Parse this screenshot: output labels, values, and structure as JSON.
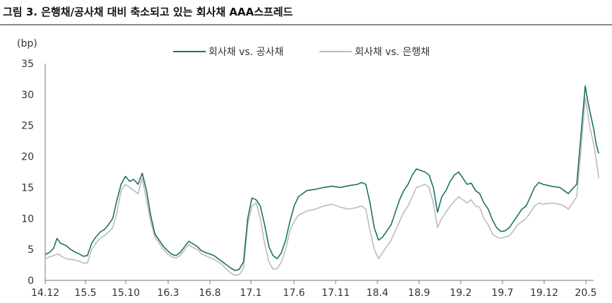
{
  "title": "그림 3. 은행채/공사채 대비 축소되고 있는 회사채 AAA스프레드",
  "chart_data": {
    "type": "line",
    "title": "그림 3. 은행채/공사채 대비 축소되고 있는 회사채 AAA스프레드",
    "ylabel": "(bp)",
    "xlabel": "",
    "ylim": [
      0,
      35
    ],
    "yticks": [
      "0",
      "5",
      "10",
      "15",
      "20",
      "25",
      "30",
      "35"
    ],
    "xticks": [
      "14.12",
      "15.5",
      "15.10",
      "16.3",
      "16.8",
      "17.1",
      "17.6",
      "17.11",
      "18.4",
      "18.9",
      "19.2",
      "19.7",
      "19.12",
      "20.5"
    ],
    "xlim": [
      0,
      65
    ],
    "legend_position": "top",
    "series": [
      {
        "name": "회사채 vs. 공사채",
        "color": "#1f6f68",
        "points": [
          [
            0,
            4.2
          ],
          [
            0.5,
            4.5
          ],
          [
            1,
            5.2
          ],
          [
            1.4,
            6.8
          ],
          [
            1.8,
            6.0
          ],
          [
            2.5,
            5.6
          ],
          [
            3,
            5.0
          ],
          [
            3.5,
            4.6
          ],
          [
            4,
            4.3
          ],
          [
            4.5,
            3.9
          ],
          [
            5,
            4.0
          ],
          [
            5.5,
            6.0
          ],
          [
            6,
            7.0
          ],
          [
            6.5,
            7.8
          ],
          [
            7,
            8.2
          ],
          [
            7.5,
            9.0
          ],
          [
            8,
            10.0
          ],
          [
            8.5,
            13.0
          ],
          [
            9,
            15.5
          ],
          [
            9.5,
            16.8
          ],
          [
            10,
            16.0
          ],
          [
            10.5,
            16.3
          ],
          [
            11,
            15.5
          ],
          [
            11.5,
            17.3
          ],
          [
            12,
            14.5
          ],
          [
            12.5,
            10.5
          ],
          [
            13,
            7.5
          ],
          [
            13.5,
            6.5
          ],
          [
            14,
            5.5
          ],
          [
            14.5,
            4.8
          ],
          [
            15,
            4.2
          ],
          [
            15.5,
            4.0
          ],
          [
            16,
            4.5
          ],
          [
            17,
            6.3
          ],
          [
            17.5,
            5.9
          ],
          [
            18,
            5.5
          ],
          [
            18.5,
            4.8
          ],
          [
            19,
            4.5
          ],
          [
            20,
            4.0
          ],
          [
            20.5,
            3.5
          ],
          [
            21,
            3.0
          ],
          [
            21.5,
            2.5
          ],
          [
            22,
            2.0
          ],
          [
            22.5,
            1.6
          ],
          [
            23,
            1.8
          ],
          [
            23.5,
            3.0
          ],
          [
            24,
            10.0
          ],
          [
            24.5,
            13.3
          ],
          [
            25,
            13.0
          ],
          [
            25.5,
            12.0
          ],
          [
            26,
            9.0
          ],
          [
            26.5,
            5.5
          ],
          [
            27,
            4.0
          ],
          [
            27.5,
            3.5
          ],
          [
            28,
            4.5
          ],
          [
            28.5,
            6.5
          ],
          [
            29,
            9.5
          ],
          [
            29.5,
            12.0
          ],
          [
            30,
            13.5
          ],
          [
            31,
            14.5
          ],
          [
            32,
            14.7
          ],
          [
            33,
            15.0
          ],
          [
            34,
            15.2
          ],
          [
            35,
            15.0
          ],
          [
            36,
            15.3
          ],
          [
            37,
            15.5
          ],
          [
            37.5,
            15.8
          ],
          [
            38,
            15.5
          ],
          [
            38.5,
            12.5
          ],
          [
            39,
            8.5
          ],
          [
            39.5,
            6.5
          ],
          [
            40,
            7.0
          ],
          [
            40.5,
            8.0
          ],
          [
            41,
            9.0
          ],
          [
            41.5,
            11.0
          ],
          [
            42,
            13.0
          ],
          [
            42.5,
            14.5
          ],
          [
            43,
            15.5
          ],
          [
            43.5,
            17.0
          ],
          [
            44,
            18.0
          ],
          [
            45,
            17.5
          ],
          [
            45.5,
            17.0
          ],
          [
            46,
            15.0
          ],
          [
            46.5,
            11.0
          ],
          [
            47,
            13.5
          ],
          [
            47.5,
            14.5
          ],
          [
            48,
            16.0
          ],
          [
            48.5,
            17.0
          ],
          [
            49,
            17.5
          ],
          [
            49.5,
            16.5
          ],
          [
            50,
            15.5
          ],
          [
            50.5,
            15.7
          ],
          [
            51,
            14.5
          ],
          [
            51.5,
            14.0
          ],
          [
            52,
            12.5
          ],
          [
            52.5,
            11.5
          ],
          [
            53,
            9.8
          ],
          [
            53.5,
            8.5
          ],
          [
            54,
            7.9
          ],
          [
            54.5,
            8.0
          ],
          [
            55,
            8.5
          ],
          [
            55.5,
            9.5
          ],
          [
            56,
            10.5
          ],
          [
            56.5,
            11.5
          ],
          [
            57,
            12.0
          ],
          [
            57.5,
            13.5
          ],
          [
            58,
            15.0
          ],
          [
            58.5,
            15.8
          ],
          [
            59,
            15.5
          ],
          [
            60,
            15.2
          ],
          [
            61,
            15.0
          ],
          [
            61.5,
            14.5
          ],
          [
            62,
            14.0
          ],
          [
            62.5,
            14.8
          ],
          [
            63,
            15.5
          ],
          [
            63.5,
            23.5
          ],
          [
            64,
            31.4
          ],
          [
            64.3,
            29.0
          ],
          [
            64.6,
            27.0
          ],
          [
            65,
            24.5
          ],
          [
            65.3,
            22.0
          ],
          [
            65.6,
            20.5
          ]
        ]
      },
      {
        "name": "회사채 vs. 은행채",
        "color": "#bcbcbc",
        "points": [
          [
            0,
            3.5
          ],
          [
            0.5,
            3.8
          ],
          [
            1,
            4.0
          ],
          [
            1.5,
            4.3
          ],
          [
            2,
            3.8
          ],
          [
            2.5,
            3.5
          ],
          [
            3,
            3.4
          ],
          [
            3.5,
            3.3
          ],
          [
            4,
            3.1
          ],
          [
            4.5,
            2.8
          ],
          [
            5,
            2.8
          ],
          [
            5.5,
            5.0
          ],
          [
            6,
            6.0
          ],
          [
            6.5,
            6.8
          ],
          [
            7,
            7.2
          ],
          [
            7.5,
            7.8
          ],
          [
            8,
            8.5
          ],
          [
            8.5,
            11.0
          ],
          [
            9,
            14.5
          ],
          [
            9.5,
            15.5
          ],
          [
            10,
            15.0
          ],
          [
            10.5,
            14.5
          ],
          [
            11,
            14.0
          ],
          [
            11.5,
            16.5
          ],
          [
            12,
            13.0
          ],
          [
            12.5,
            9.5
          ],
          [
            13,
            7.0
          ],
          [
            13.5,
            6.0
          ],
          [
            14,
            5.0
          ],
          [
            14.5,
            4.3
          ],
          [
            15,
            3.8
          ],
          [
            15.5,
            3.6
          ],
          [
            16,
            4.0
          ],
          [
            17,
            5.8
          ],
          [
            17.5,
            5.3
          ],
          [
            18,
            5.0
          ],
          [
            18.5,
            4.3
          ],
          [
            19,
            4.0
          ],
          [
            20,
            3.4
          ],
          [
            20.5,
            3.0
          ],
          [
            21,
            2.5
          ],
          [
            21.5,
            1.8
          ],
          [
            22,
            1.2
          ],
          [
            22.5,
            0.8
          ],
          [
            23,
            0.9
          ],
          [
            23.5,
            2.0
          ],
          [
            24,
            9.0
          ],
          [
            24.5,
            12.0
          ],
          [
            25,
            12.5
          ],
          [
            25.5,
            10.0
          ],
          [
            26,
            6.0
          ],
          [
            26.5,
            3.0
          ],
          [
            27,
            1.8
          ],
          [
            27.5,
            1.9
          ],
          [
            28,
            3.0
          ],
          [
            28.5,
            5.0
          ],
          [
            29,
            8.0
          ],
          [
            29.5,
            9.5
          ],
          [
            30,
            10.5
          ],
          [
            31,
            11.2
          ],
          [
            32,
            11.5
          ],
          [
            33,
            12.0
          ],
          [
            34,
            12.3
          ],
          [
            35,
            11.8
          ],
          [
            36,
            11.5
          ],
          [
            37,
            11.8
          ],
          [
            37.5,
            12.0
          ],
          [
            38,
            11.5
          ],
          [
            38.5,
            8.0
          ],
          [
            39,
            5.0
          ],
          [
            39.5,
            3.5
          ],
          [
            40,
            4.5
          ],
          [
            40.5,
            5.5
          ],
          [
            41,
            6.5
          ],
          [
            41.5,
            8.0
          ],
          [
            42,
            9.5
          ],
          [
            42.5,
            11.0
          ],
          [
            43,
            12.0
          ],
          [
            43.5,
            13.5
          ],
          [
            44,
            15.0
          ],
          [
            45,
            15.5
          ],
          [
            45.5,
            15.0
          ],
          [
            46,
            12.5
          ],
          [
            46.5,
            8.5
          ],
          [
            47,
            10.0
          ],
          [
            47.5,
            11.0
          ],
          [
            48,
            12.0
          ],
          [
            48.5,
            12.8
          ],
          [
            49,
            13.5
          ],
          [
            49.5,
            13.0
          ],
          [
            50,
            12.5
          ],
          [
            50.5,
            13.0
          ],
          [
            51,
            12.0
          ],
          [
            51.5,
            11.8
          ],
          [
            52,
            10.0
          ],
          [
            52.5,
            9.0
          ],
          [
            53,
            7.5
          ],
          [
            53.5,
            7.0
          ],
          [
            54,
            6.8
          ],
          [
            54.5,
            7.0
          ],
          [
            55,
            7.2
          ],
          [
            55.5,
            8.0
          ],
          [
            56,
            9.0
          ],
          [
            56.5,
            9.5
          ],
          [
            57,
            10.0
          ],
          [
            57.5,
            11.0
          ],
          [
            58,
            12.0
          ],
          [
            58.5,
            12.5
          ],
          [
            59,
            12.3
          ],
          [
            60,
            12.5
          ],
          [
            61,
            12.3
          ],
          [
            61.5,
            12.0
          ],
          [
            62,
            11.5
          ],
          [
            62.5,
            12.5
          ],
          [
            63,
            13.5
          ],
          [
            63.5,
            21.0
          ],
          [
            64,
            29.5
          ],
          [
            64.3,
            27.0
          ],
          [
            64.6,
            24.5
          ],
          [
            65,
            22.0
          ],
          [
            65.3,
            19.5
          ],
          [
            65.6,
            16.5
          ]
        ]
      }
    ]
  }
}
